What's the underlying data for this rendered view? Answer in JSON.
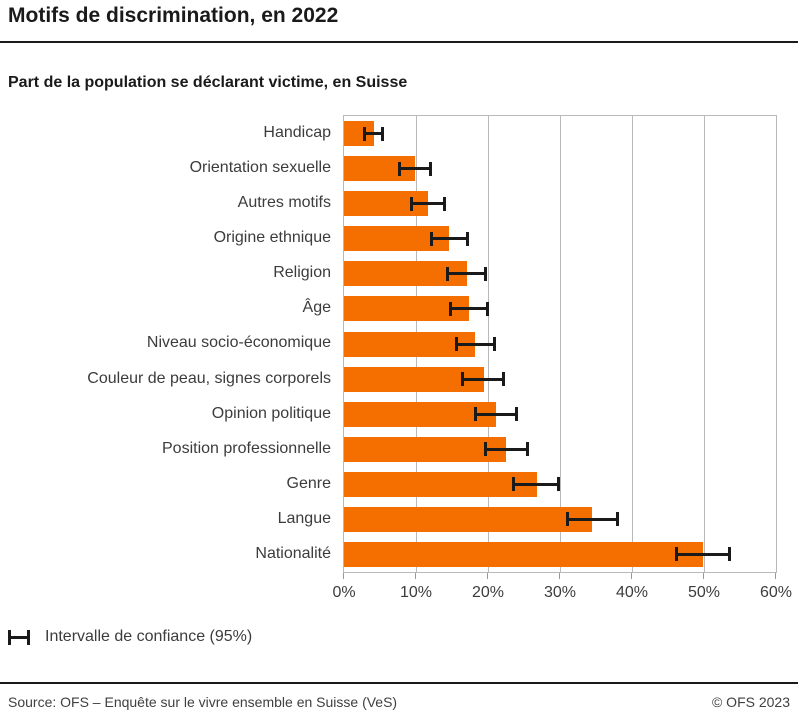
{
  "header": {
    "title": "Motifs de discrimination, en 2022"
  },
  "subtitle": "Part de la population se déclarant victime, en Suisse",
  "legend": {
    "label": "Intervalle de confiance (95%)"
  },
  "footer": {
    "source": "Source: OFS – Enquête sur le vivre ensemble en Suisse (VeS)",
    "copyright": "© OFS 2023"
  },
  "colors": {
    "bar": "#f56e00",
    "error": "#1a1a1a",
    "grid": "#b9b9b9",
    "text": "#3c3c3c"
  },
  "chart_data": {
    "type": "bar",
    "orientation": "horizontal",
    "title": "Motifs de discrimination, en 2022",
    "subtitle": "Part de la population se déclarant victime, en Suisse",
    "xlabel": "",
    "ylabel": "",
    "xlim": [
      0,
      60
    ],
    "x_ticks": [
      0,
      10,
      20,
      30,
      40,
      50,
      60
    ],
    "x_tick_labels": [
      "0%",
      "10%",
      "20%",
      "30%",
      "40%",
      "50%",
      "60%"
    ],
    "grid": true,
    "legend_entries": [
      "Intervalle de confiance (95%)"
    ],
    "legend_position": "bottom-left",
    "categories": [
      "Handicap",
      "Orientation sexuelle",
      "Autres motifs",
      "Origine ethnique",
      "Religion",
      "Âge",
      "Niveau socio-économique",
      "Couleur de peau, signes corporels",
      "Opinion politique",
      "Position professionnelle",
      "Genre",
      "Langue",
      "Nationalité"
    ],
    "values": [
      4.1,
      9.8,
      11.7,
      14.6,
      17.1,
      17.4,
      18.2,
      19.4,
      21.1,
      22.5,
      26.8,
      34.5,
      49.8
    ],
    "ci_low": [
      2.6,
      7.5,
      9.2,
      11.9,
      14.1,
      14.6,
      15.4,
      16.3,
      18.1,
      19.5,
      23.4,
      30.8,
      46.0
    ],
    "ci_high": [
      5.6,
      12.2,
      14.2,
      17.4,
      19.8,
      20.2,
      21.1,
      22.3,
      24.2,
      25.7,
      30.0,
      38.2,
      53.7
    ]
  }
}
